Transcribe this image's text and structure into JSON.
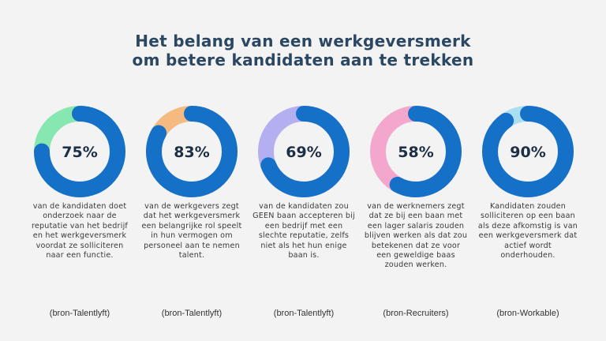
{
  "title": {
    "line1": "Het belang van een werkgeversmerk",
    "line2": "om betere kandidaten aan te trekken"
  },
  "colors": {
    "primary": "#1570c8",
    "text": "#2b4762"
  },
  "chart_data": {
    "type": "pie",
    "variant": "donut",
    "title": "Het belang van een werkgeversmerk om betere kandidaten aan te trekken",
    "items": [
      {
        "value": 75,
        "label": "75%",
        "remainder_color": "#86e8b0",
        "description": "van de kandidaten doet onderzoek naar de reputatie van het bedrijf en het werkgeversmerk voordat ze solliciteren naar een functie.",
        "source": "(bron-Talentlyft)"
      },
      {
        "value": 83,
        "label": "83%",
        "remainder_color": "#f5ba80",
        "description": "van de werkgevers zegt dat het werkgeversmerk een belangrijke rol speelt in hun vermogen om personeel aan te nemen talent.",
        "source": "(bron-Talentlyft)"
      },
      {
        "value": 69,
        "label": "69%",
        "remainder_color": "#b4aff0",
        "description": "van de kandidaten zou GEEN baan accepteren bij een bedrijf met een slechte reputatie, zelfs niet als het hun enige baan is.",
        "source": "(bron-Talentlyft)"
      },
      {
        "value": 58,
        "label": "58%",
        "remainder_color": "#f3a7cd",
        "description": "van de werknemers zegt dat ze bij een baan met een lager salaris zouden blijven werken als dat zou betekenen dat ze voor een geweldige baas zouden werken.",
        "source": "(bron-Recruiters)"
      },
      {
        "value": 90,
        "label": "90%",
        "remainder_color": "#aadff3",
        "description": "Kandidaten zouden solliciteren op een baan als deze afkomstig is van een werkgeversmerk dat actief wordt onderhouden.",
        "source": "(bron-Workable)"
      }
    ]
  }
}
